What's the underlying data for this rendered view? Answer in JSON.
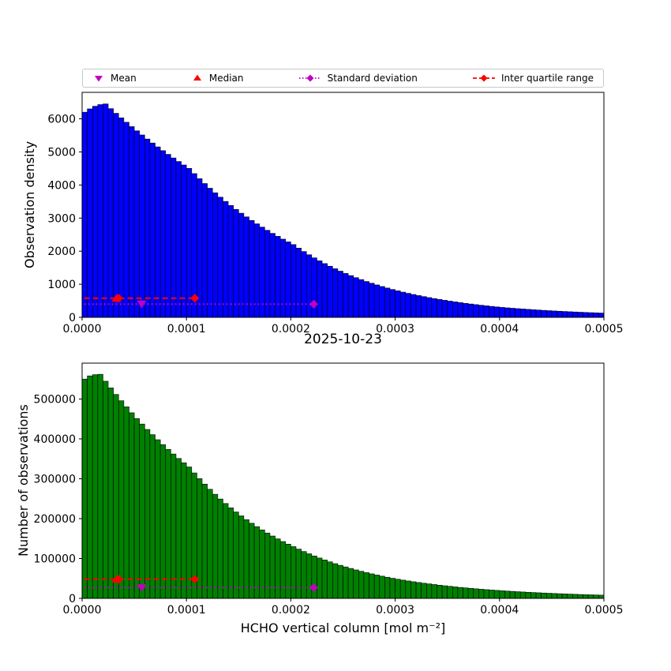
{
  "figure": {
    "date_title": "2025-10-23",
    "colors": {
      "top_bar": "#0000ff",
      "bottom_bar": "#008000",
      "bar_edge": "#000000",
      "mean": "#bf00bf",
      "median": "#ff0000",
      "std": "#bf00bf",
      "iqr": "#ff0000",
      "axes": "#000000"
    },
    "legend": {
      "entries": [
        {
          "label": "Mean",
          "marker": "triangle-down",
          "color": "#bf00bf"
        },
        {
          "label": "Median",
          "marker": "triangle-up",
          "color": "#ff0000"
        },
        {
          "label": "Standard deviation",
          "marker": "diamond-dotted-line",
          "color": "#bf00bf"
        },
        {
          "label": "Inter quartile range",
          "marker": "diamond-dashed-line",
          "color": "#ff0000"
        }
      ]
    }
  },
  "chart_data": [
    {
      "type": "bar",
      "subplot": "top",
      "title": "",
      "xlabel": "",
      "ylabel": "Observation density",
      "xlim": [
        0,
        0.0005
      ],
      "ylim": [
        0,
        6800
      ],
      "bin_start": 0,
      "bin_width": 5e-06,
      "bar_color": "#0000ff",
      "x_ticks": [
        0,
        0.0001,
        0.0002,
        0.0003,
        0.0004,
        0.0005
      ],
      "x_tick_labels": [
        "0.0000",
        "0.0001",
        "0.0002",
        "0.0003",
        "0.0004",
        "0.0005"
      ],
      "y_ticks": [
        0,
        1000,
        2000,
        3000,
        4000,
        5000,
        6000
      ],
      "y_tick_labels": [
        "0",
        "1000",
        "2000",
        "3000",
        "4000",
        "5000",
        "6000"
      ],
      "values": [
        6200,
        6300,
        6380,
        6430,
        6450,
        6307,
        6167,
        6030,
        5896,
        5765,
        5637,
        5512,
        5389,
        5269,
        5152,
        5038,
        4926,
        4817,
        4710,
        4605,
        4503,
        4344,
        4191,
        4044,
        3902,
        3765,
        3632,
        3504,
        3381,
        3262,
        3147,
        3036,
        2929,
        2826,
        2727,
        2631,
        2538,
        2449,
        2363,
        2280,
        2200,
        2092,
        1989,
        1891,
        1797,
        1709,
        1625,
        1545,
        1469,
        1396,
        1327,
        1262,
        1200,
        1141,
        1084,
        1031,
        980,
        932,
        886,
        842,
        801,
        762,
        726,
        691,
        658,
        627,
        597,
        568,
        541,
        515,
        490,
        467,
        445,
        423,
        403,
        384,
        365,
        348,
        331,
        315,
        300,
        287,
        275,
        263,
        252,
        241,
        230,
        221,
        211,
        202,
        193,
        185,
        177,
        169,
        162,
        155,
        148,
        142,
        136,
        130
      ],
      "markers": {
        "mean": {
          "x": 5.7e-05,
          "y": 400
        },
        "median": {
          "x": 3.3e-05,
          "y": 580
        },
        "std": {
          "x0": 2e-06,
          "x1": 0.000222,
          "y": 400
        },
        "iqr": {
          "x0": 2e-06,
          "x1": 0.000108,
          "y": 580,
          "left_diamond_x": 3.5e-05
        }
      }
    },
    {
      "type": "bar",
      "subplot": "bottom",
      "title": "2025-10-23",
      "xlabel": "HCHO vertical column [mol m⁻²]",
      "ylabel": "Number of observations",
      "xlim": [
        0,
        0.0005
      ],
      "ylim": [
        0,
        590000
      ],
      "bin_start": 0,
      "bin_width": 5e-06,
      "bar_color": "#008000",
      "x_ticks": [
        0,
        0.0001,
        0.0002,
        0.0003,
        0.0004,
        0.0005
      ],
      "x_tick_labels": [
        "0.0000",
        "0.0001",
        "0.0002",
        "0.0003",
        "0.0004",
        "0.0005"
      ],
      "y_ticks": [
        0,
        100000,
        200000,
        300000,
        400000,
        500000
      ],
      "y_tick_labels": [
        "0",
        "100000",
        "200000",
        "300000",
        "400000",
        "500000"
      ],
      "values": [
        550000,
        558000,
        561000,
        562000,
        544600,
        527800,
        511500,
        495700,
        480400,
        465500,
        451100,
        437200,
        423700,
        410600,
        397900,
        385600,
        373700,
        362100,
        350900,
        340100,
        329600,
        314600,
        300300,
        286600,
        273600,
        261100,
        249200,
        237900,
        227100,
        216700,
        206900,
        197400,
        188400,
        179900,
        171700,
        163900,
        156400,
        149300,
        142500,
        136000,
        129800,
        123500,
        117500,
        111800,
        106400,
        101200,
        96300,
        91600,
        87100,
        82900,
        78900,
        75100,
        71400,
        67900,
        64600,
        61500,
        58500,
        55700,
        53000,
        50400,
        48000,
        45800,
        43700,
        41700,
        39800,
        38000,
        36300,
        34700,
        33100,
        31600,
        30200,
        28800,
        27500,
        26300,
        25100,
        24000,
        22900,
        21900,
        20900,
        20000,
        19100,
        18300,
        17500,
        16700,
        16000,
        15300,
        14600,
        14000,
        13400,
        12800,
        12200,
        11700,
        11200,
        10700,
        10200,
        9700,
        9300,
        8900,
        8500,
        8100
      ],
      "markers": {
        "mean": {
          "x": 5.7e-05,
          "y": 27000
        },
        "median": {
          "x": 3.3e-05,
          "y": 48000
        },
        "std": {
          "x0": 2e-06,
          "x1": 0.000222,
          "y": 27000
        },
        "iqr": {
          "x0": 2e-06,
          "x1": 0.000108,
          "y": 48000,
          "left_diamond_x": 3.5e-05
        }
      }
    }
  ]
}
